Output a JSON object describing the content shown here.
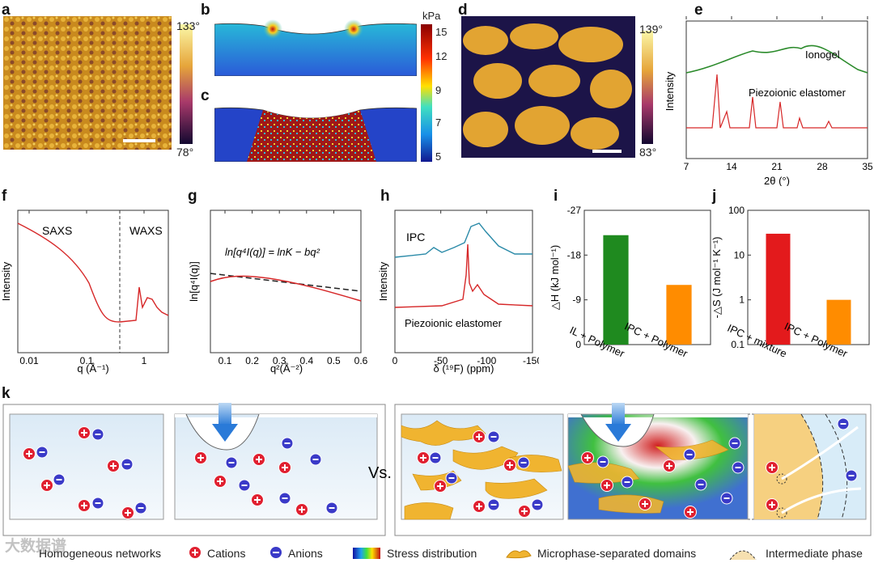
{
  "panel_labels": [
    "a",
    "b",
    "c",
    "d",
    "e",
    "f",
    "g",
    "h",
    "i",
    "j",
    "k"
  ],
  "colorbar_a": {
    "max": "133°",
    "min": "78°"
  },
  "colorbar_d": {
    "max": "139°",
    "min": "83°"
  },
  "colorbar_b": {
    "unit": "kPa",
    "ticks": [
      "15",
      "12",
      "9",
      "7",
      "5"
    ]
  },
  "colors": {
    "ionogel": "#2a8a2a",
    "piezo": "#d62728",
    "ipc": "#2a8aa8",
    "green_bar": "#1f8a1f",
    "orange_bar": "#ff8c00",
    "red_bar": "#e31a1c"
  },
  "chart_data": [
    {
      "id": "e",
      "type": "line",
      "xlabel": "2θ (°)",
      "ylabel": "Intensity",
      "xticks": [
        "7",
        "14",
        "21",
        "28",
        "35"
      ],
      "xlim": [
        7,
        35
      ],
      "series": [
        {
          "name": "Ionogel"
        },
        {
          "name": "Piezoionic elastomer"
        }
      ]
    },
    {
      "id": "f",
      "type": "line",
      "xlabel": "q (Å⁻¹)",
      "ylabel": "Intensity",
      "xticks": [
        "0.01",
        "0.1",
        "1"
      ],
      "annotations": [
        "SAXS",
        "WAXS"
      ]
    },
    {
      "id": "g",
      "type": "line",
      "xlabel": "q²(Å⁻²)",
      "ylabel": "ln[q⁴I(q)]",
      "xticks": [
        "0.1",
        "0.2",
        "0.3",
        "0.4",
        "0.5",
        "0.6"
      ],
      "xlim": [
        0.03,
        0.6
      ],
      "equation": "ln[q⁴I(q)] = lnK − bq²"
    },
    {
      "id": "h",
      "type": "line",
      "xlabel": "δ (¹⁹F) (ppm)",
      "ylabel": "Intensity",
      "xticks": [
        "0",
        "-50",
        "-100",
        "-150"
      ],
      "xlim": [
        0,
        -150
      ],
      "series": [
        {
          "name": "IPC"
        },
        {
          "name": "Piezoionic elastomer"
        }
      ]
    },
    {
      "id": "i",
      "type": "bar",
      "ylabel": "△H (kJ mol⁻¹)",
      "yticks": [
        "-27",
        "-18",
        "-9",
        "0"
      ],
      "ylim": [
        0,
        -27
      ],
      "categories": [
        "IL + Polymer",
        "IPC + Polymer"
      ],
      "values": [
        -22,
        -12
      ]
    },
    {
      "id": "j",
      "type": "bar",
      "ylabel": "-△S (J mol⁻¹ K⁻¹)",
      "scale": "log",
      "yticks": [
        "100",
        "10",
        "1",
        "0.1"
      ],
      "ylim": [
        0.1,
        100
      ],
      "categories": [
        "IPC + mixture",
        "IPC + Polymer"
      ],
      "values": [
        30,
        1
      ]
    }
  ],
  "panel_k": {
    "vs": "Vs."
  },
  "legend": {
    "homogeneous": "Homogeneous networks",
    "cations": "Cations",
    "anions": "Anions",
    "stress": "Stress distribution",
    "micro": "Microphase-separated domains",
    "intermediate": "Intermediate phase"
  },
  "watermark": "大数据谱"
}
